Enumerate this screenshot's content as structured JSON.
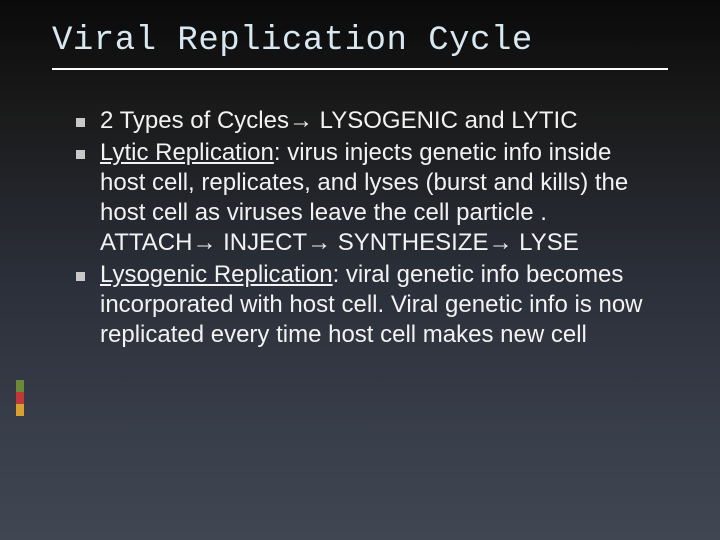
{
  "title": {
    "text": "Viral Replication Cycle",
    "fontsize": 34,
    "color": "#d8e8f0"
  },
  "body": {
    "fontsize": 24,
    "line_height": 30,
    "color": "#f2f2f2"
  },
  "arrow_glyph": "→",
  "accent_colors": [
    "#6a8a3a",
    "#c03838",
    "#d8a030"
  ],
  "bullets": [
    {
      "runs": [
        {
          "t": "2 Types of Cycles"
        },
        {
          "t": "ARROW",
          "arrow": true
        },
        {
          "t": " LYSOGENIC and LYTIC"
        }
      ]
    },
    {
      "runs": [
        {
          "t": "Lytic Replication",
          "u": true
        },
        {
          "t": ": virus injects genetic info inside host cell, replicates, and lyses (burst and kills) the host cell as  viruses leave the cell particle . ATTACH"
        },
        {
          "t": "ARROW",
          "arrow": true
        },
        {
          "t": " INJECT"
        },
        {
          "t": "ARROW",
          "arrow": true
        },
        {
          "t": " SYNTHESIZE"
        },
        {
          "t": "ARROW",
          "arrow": true
        },
        {
          "t": " LYSE"
        }
      ]
    },
    {
      "runs": [
        {
          "t": "Lysogenic Replication",
          "u": true
        },
        {
          "t": ": viral genetic info becomes incorporated with host cell.  Viral genetic info is now replicated every time host cell makes new cell"
        }
      ]
    }
  ]
}
